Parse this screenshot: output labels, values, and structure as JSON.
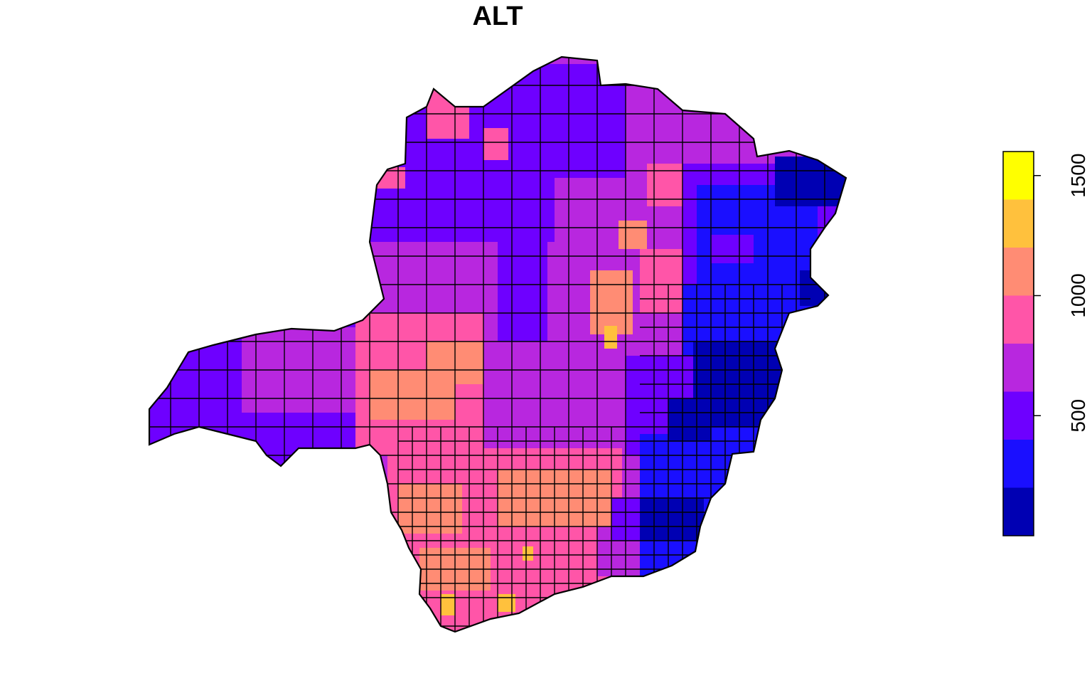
{
  "map": {
    "title": "ALT",
    "variable": "ALT",
    "region_fill_colors_by_elevation": "palette matches legend classes"
  },
  "legend": {
    "type": "continuous color bar",
    "range": [
      0,
      1600
    ],
    "breaks": [
      0,
      200,
      400,
      600,
      800,
      1000,
      1200,
      1400,
      1600
    ],
    "colors": [
      "#0000B3",
      "#1A0FFF",
      "#6E00FF",
      "#B827DF",
      "#FF55A8",
      "#FF8C74",
      "#FFC13D",
      "#FFFF00"
    ],
    "ticks": [
      {
        "value": 500,
        "label": "500"
      },
      {
        "value": 1000,
        "label": "1000"
      },
      {
        "value": 1500,
        "label": "1500"
      }
    ]
  }
}
